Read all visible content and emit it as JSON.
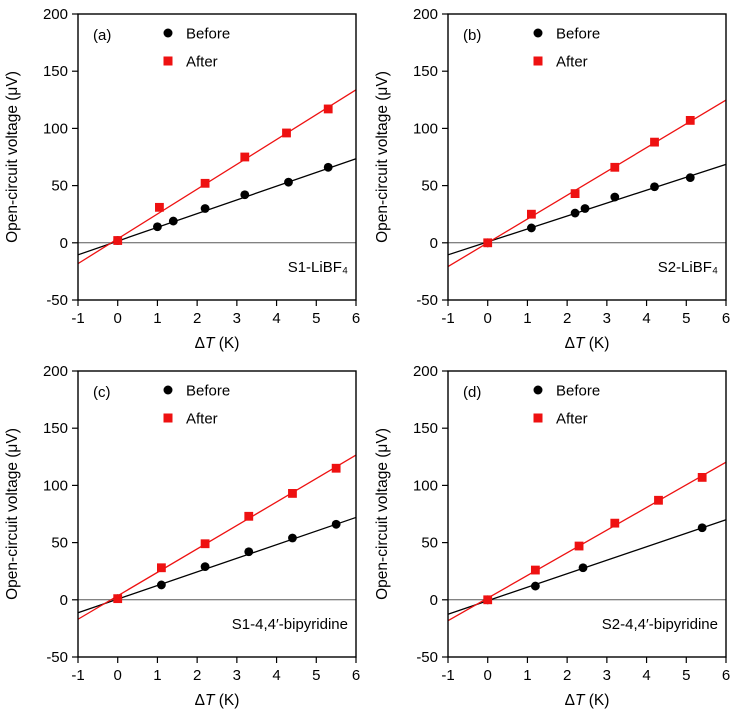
{
  "figure": {
    "background": "#ffffff",
    "layout": "2x2-panels"
  },
  "colors": {
    "before": "#000000",
    "after": "#ee1111",
    "frame": "#000000",
    "zero_line": "#595959"
  },
  "chart_data": [
    {
      "type": "scatter",
      "panel_label": "(a)",
      "sample_label": "S1-LiBF₄",
      "xlabel": "ΔT (K)",
      "xlabel_parts": [
        "Δ",
        "T",
        " (K)"
      ],
      "ylabel": "Open-circuit voltage (μV)",
      "xlim": [
        -1,
        6
      ],
      "ylim": [
        -50,
        200
      ],
      "xticks": [
        -1,
        0,
        1,
        2,
        3,
        4,
        5,
        6
      ],
      "yticks": [
        -50,
        0,
        50,
        100,
        150,
        200
      ],
      "grid": false,
      "legend": {
        "position": "upper-left-inside"
      },
      "series": [
        {
          "name": "Before",
          "marker": "circle",
          "color": "#000000",
          "points": [
            [
              0,
              2
            ],
            [
              1.0,
              14
            ],
            [
              1.4,
              19
            ],
            [
              2.2,
              30
            ],
            [
              3.2,
              42
            ],
            [
              4.3,
              53
            ],
            [
              5.3,
              66
            ]
          ],
          "fit": {
            "slope": 12.0,
            "intercept": 1.5
          }
        },
        {
          "name": "After",
          "marker": "square",
          "color": "#ee1111",
          "points": [
            [
              0,
              2
            ],
            [
              1.05,
              31
            ],
            [
              2.2,
              52
            ],
            [
              3.2,
              75
            ],
            [
              4.25,
              96
            ],
            [
              5.3,
              117
            ]
          ],
          "fit": {
            "slope": 21.7,
            "intercept": 3.5
          }
        }
      ]
    },
    {
      "type": "scatter",
      "panel_label": "(b)",
      "sample_label": "S2-LiBF₄",
      "xlabel": "ΔT (K)",
      "xlabel_parts": [
        "Δ",
        "T",
        " (K)"
      ],
      "ylabel": "Open-circuit voltage (μV)",
      "xlim": [
        -1,
        6
      ],
      "ylim": [
        -50,
        200
      ],
      "xticks": [
        -1,
        0,
        1,
        2,
        3,
        4,
        5,
        6
      ],
      "yticks": [
        -50,
        0,
        50,
        100,
        150,
        200
      ],
      "grid": false,
      "legend": {
        "position": "upper-left-inside"
      },
      "series": [
        {
          "name": "Before",
          "marker": "circle",
          "color": "#000000",
          "points": [
            [
              0,
              0
            ],
            [
              1.1,
              13
            ],
            [
              2.2,
              26
            ],
            [
              2.45,
              30
            ],
            [
              3.2,
              40
            ],
            [
              4.2,
              49
            ],
            [
              5.1,
              57
            ]
          ],
          "fit": {
            "slope": 11.3,
            "intercept": 0.8
          }
        },
        {
          "name": "After",
          "marker": "square",
          "color": "#ee1111",
          "points": [
            [
              0,
              0
            ],
            [
              1.1,
              25
            ],
            [
              2.2,
              43
            ],
            [
              3.2,
              66
            ],
            [
              4.2,
              88
            ],
            [
              5.1,
              107
            ]
          ],
          "fit": {
            "slope": 20.8,
            "intercept": 0.0
          }
        }
      ]
    },
    {
      "type": "scatter",
      "panel_label": "(c)",
      "sample_label": "S1-4,4′-bipyridine",
      "xlabel": "ΔT (K)",
      "xlabel_parts": [
        "Δ",
        "T",
        " (K)"
      ],
      "ylabel": "Open-circuit voltage (μV)",
      "xlim": [
        -1,
        6
      ],
      "ylim": [
        -50,
        200
      ],
      "xticks": [
        -1,
        0,
        1,
        2,
        3,
        4,
        5,
        6
      ],
      "yticks": [
        -50,
        0,
        50,
        100,
        150,
        200
      ],
      "grid": false,
      "legend": {
        "position": "upper-left-inside"
      },
      "series": [
        {
          "name": "Before",
          "marker": "circle",
          "color": "#000000",
          "points": [
            [
              0,
              1
            ],
            [
              1.1,
              13
            ],
            [
              2.2,
              29
            ],
            [
              3.3,
              42
            ],
            [
              4.4,
              54
            ],
            [
              5.5,
              66
            ]
          ],
          "fit": {
            "slope": 11.9,
            "intercept": 0.6
          }
        },
        {
          "name": "After",
          "marker": "square",
          "color": "#ee1111",
          "points": [
            [
              0,
              1
            ],
            [
              1.1,
              28
            ],
            [
              2.2,
              49
            ],
            [
              3.3,
              73
            ],
            [
              4.4,
              93
            ],
            [
              5.5,
              115
            ]
          ],
          "fit": {
            "slope": 20.5,
            "intercept": 3.5
          }
        }
      ]
    },
    {
      "type": "scatter",
      "panel_label": "(d)",
      "sample_label": "S2-4,4′-bipyridine",
      "xlabel": "ΔT (K)",
      "xlabel_parts": [
        "Δ",
        "T",
        " (K)"
      ],
      "ylabel": "Open-circuit voltage (μV)",
      "xlim": [
        -1,
        6
      ],
      "ylim": [
        -50,
        200
      ],
      "xticks": [
        -1,
        0,
        1,
        2,
        3,
        4,
        5,
        6
      ],
      "yticks": [
        -50,
        0,
        50,
        100,
        150,
        200
      ],
      "grid": false,
      "legend": {
        "position": "upper-left-inside"
      },
      "series": [
        {
          "name": "Before",
          "marker": "circle",
          "color": "#000000",
          "points": [
            [
              0,
              0
            ],
            [
              1.2,
              12
            ],
            [
              2.4,
              28
            ],
            [
              5.4,
              63
            ]
          ],
          "fit": {
            "slope": 11.8,
            "intercept": -0.8
          }
        },
        {
          "name": "After",
          "marker": "square",
          "color": "#ee1111",
          "points": [
            [
              0,
              0
            ],
            [
              1.2,
              26
            ],
            [
              2.3,
              47
            ],
            [
              3.2,
              67
            ],
            [
              4.3,
              87
            ],
            [
              5.4,
              107
            ]
          ],
          "fit": {
            "slope": 19.8,
            "intercept": 1.5
          }
        }
      ]
    }
  ]
}
